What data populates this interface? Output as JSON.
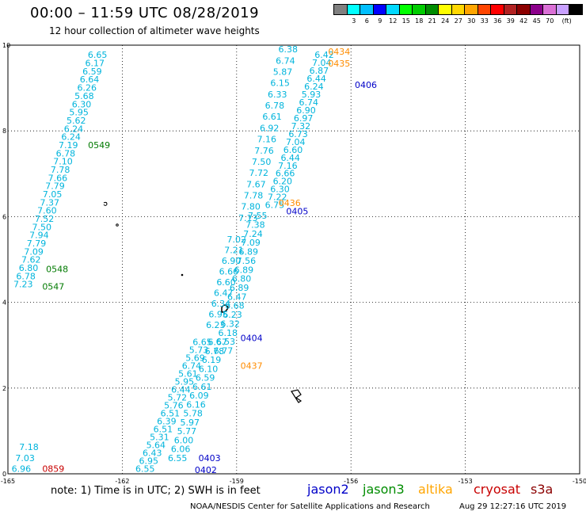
{
  "title": "00:00 – 11:59 UTC 08/28/2019",
  "subtitle": "12 hour collection of altimeter wave heights",
  "legend": {
    "unit": "(ft)",
    "colors": [
      "#808080",
      "#00ffff",
      "#00bfff",
      "#0000ff",
      "#00d9ff",
      "#00ff00",
      "#00cc00",
      "#008c00",
      "#ffff00",
      "#ffd700",
      "#ffa500",
      "#ff4500",
      "#ff0000",
      "#b22222",
      "#8b0000",
      "#8b008b",
      "#da70d6",
      "#c8a0ff",
      "#000000"
    ],
    "labels": [
      "3",
      "6",
      "9",
      "12",
      "15",
      "18",
      "21",
      "24",
      "27",
      "30",
      "33",
      "36",
      "39",
      "42",
      "45",
      "70"
    ]
  },
  "chart_data": {
    "type": "scatter",
    "xlim": [
      -165,
      -150
    ],
    "ylim": [
      0,
      10
    ],
    "x_ticks": [
      "-165",
      "-162",
      "-159",
      "-156",
      "-153",
      "-150"
    ],
    "y_ticks": [
      "0",
      "2",
      "4",
      "6",
      "8",
      "10"
    ],
    "grid": true,
    "colors": {
      "jason2": "#0000c8",
      "jason3": "#007a00",
      "altika": "#ff8c00",
      "cryosat": "#c80000",
      "s3a": "#8b0000",
      "swh": "#00b4dc"
    },
    "pass_labels": [
      {
        "text": "0434",
        "x": -156.6,
        "y": 9.78,
        "sat": "altika"
      },
      {
        "text": "0435",
        "x": -156.6,
        "y": 9.5,
        "sat": "altika"
      },
      {
        "text": "0406",
        "x": -155.9,
        "y": 9.0,
        "sat": "jason2"
      },
      {
        "text": "0549",
        "x": -162.9,
        "y": 7.6,
        "sat": "jason3"
      },
      {
        "text": "0436",
        "x": -157.9,
        "y": 6.25,
        "sat": "altika"
      },
      {
        "text": "0405",
        "x": -157.7,
        "y": 6.05,
        "sat": "jason2"
      },
      {
        "text": "0548",
        "x": -164.0,
        "y": 4.7,
        "sat": "jason3"
      },
      {
        "text": "0547",
        "x": -164.1,
        "y": 4.3,
        "sat": "jason3"
      },
      {
        "text": "0404",
        "x": -158.9,
        "y": 3.1,
        "sat": "jason2"
      },
      {
        "text": "0437",
        "x": -158.9,
        "y": 2.45,
        "sat": "altika"
      },
      {
        "text": "0859",
        "x": -164.1,
        "y": 0.05,
        "sat": "cryosat"
      },
      {
        "text": "0403",
        "x": -160.0,
        "y": 0.3,
        "sat": "jason2"
      },
      {
        "text": "0402",
        "x": -160.1,
        "y": 0.02,
        "sat": "jason2"
      }
    ],
    "tracks": [
      {
        "x0": -162.65,
        "y0": 9.7,
        "x1": -164.6,
        "y1": 4.35,
        "values": [
          "6.65",
          "6.17",
          "6.59",
          "6.64",
          "6.26",
          "5.68",
          "6.30",
          "5.95",
          "5.62",
          "6.24",
          "6.24",
          "7.19",
          "6.78",
          "7.10",
          "7.78",
          "7.66",
          "7.79",
          "7.05",
          "7.37",
          "7.60",
          "7.52",
          "7.50",
          "7.94",
          "7.79",
          "7.09",
          "7.62",
          "6.80",
          "6.78",
          "7.23"
        ]
      },
      {
        "x0": -157.65,
        "y0": 9.83,
        "x1": -158.7,
        "y1": 5.9,
        "values": [
          "6.38",
          "6.74",
          "5.87",
          "6.15",
          "6.33",
          "6.78",
          "6.61",
          "6.92",
          "7.16",
          "7.76",
          "7.50",
          "7.72",
          "7.67",
          "7.78",
          "7.80",
          "7.13"
        ]
      },
      {
        "x0": -156.7,
        "y0": 9.7,
        "x1": -158.0,
        "y1": 6.2,
        "values": [
          "6.42",
          "7.04",
          "6.87",
          "6.44",
          "6.24",
          "5.93",
          "6.74",
          "6.90",
          "6.97",
          "7.32",
          "6.73",
          "7.04",
          "6.60",
          "6.44",
          "7.16",
          "6.66",
          "6.20",
          "6.30",
          "7.22",
          "6.75"
        ]
      },
      {
        "x0": -158.45,
        "y0": 5.95,
        "x1": -159.35,
        "y1": 2.8,
        "values": [
          "7.55",
          "7.38",
          "7.24",
          "7.09",
          "6.89",
          "7.56",
          "6.89",
          "6.80",
          "6.89",
          "6.47",
          "6.68",
          "6.23",
          "6.32",
          "6.18",
          "6.53",
          "6.77"
        ]
      },
      {
        "x0": -159.0,
        "y0": 5.4,
        "x1": -159.55,
        "y1": 3.4,
        "values": [
          "7.02",
          "7.21",
          "6.90",
          "6.66",
          "6.60",
          "6.47",
          "6.34",
          "6.95",
          "6.23"
        ]
      },
      {
        "x0": -159.9,
        "y0": 3.0,
        "x1": -161.4,
        "y1": 0.05,
        "values": [
          "6.65",
          "5.73",
          "5.69",
          "6.74",
          "5.61",
          "5.95",
          "6.44",
          "5.72",
          "5.76",
          "6.51",
          "6.39",
          "6.51",
          "5.31",
          "5.64",
          "6.43",
          "6.95",
          "6.55"
        ]
      },
      {
        "x0": -159.5,
        "y0": 3.0,
        "x1": -160.55,
        "y1": 0.3,
        "values": [
          "6.67",
          "6.78",
          "6.19",
          "6.10",
          "6.59",
          "6.61",
          "6.09",
          "6.16",
          "5.78",
          "5.97",
          "5.77",
          "6.00",
          "6.06",
          "6.55"
        ]
      },
      {
        "x0": -164.45,
        "y0": 0.55,
        "x1": -164.65,
        "y1": 0.05,
        "values": [
          "7.18",
          "7.03",
          "6.96"
        ]
      }
    ]
  },
  "note": {
    "text": "note: 1) Time is in UTC; 2) SWH is in feet"
  },
  "satellites": [
    {
      "name": "jason2",
      "color": "#0000c8"
    },
    {
      "name": "jason3",
      "color": "#008c00"
    },
    {
      "name": "altika",
      "color": "#ffa500"
    },
    {
      "name": "cryosat",
      "color": "#c80000"
    },
    {
      "name": "s3a",
      "color": "#8b0000"
    }
  ],
  "credit": "NOAA/NESDIS Center for Satellite Applications and Research",
  "timestamp": "Aug 29 12:27:16 UTC 2019"
}
